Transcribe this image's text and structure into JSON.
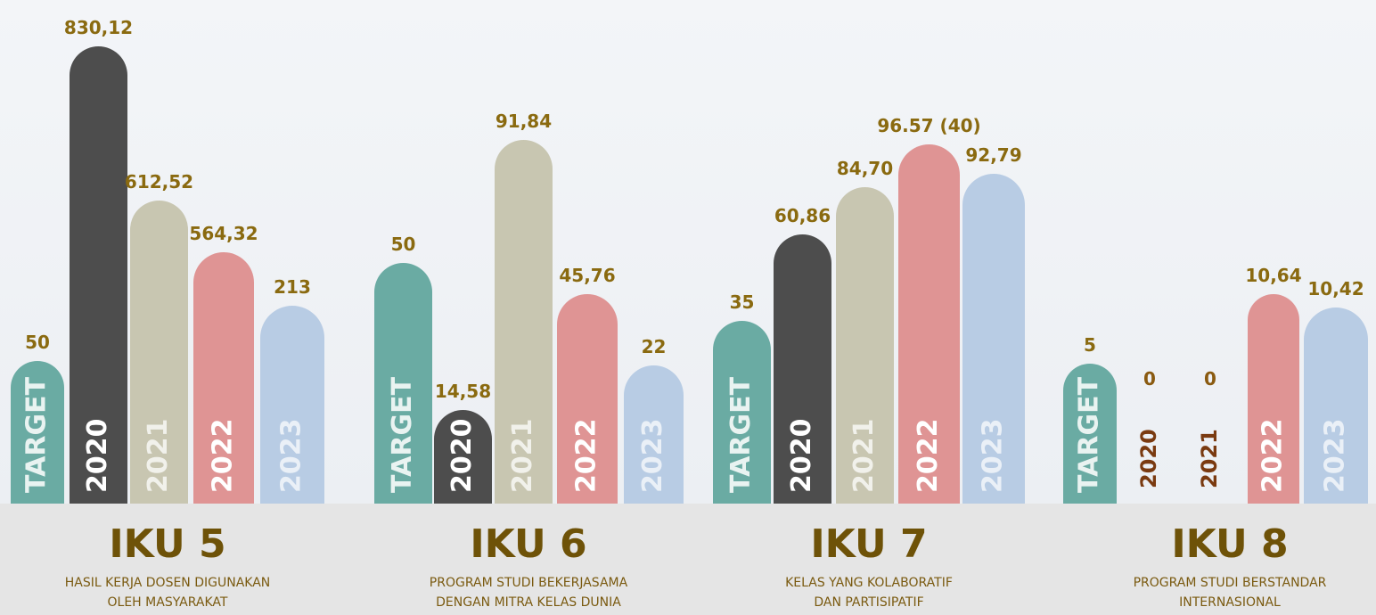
{
  "groups": [
    {
      "title": "IKU 5",
      "subtitle": [
        "HASIL KERJA DOSEN DIGUNAKAN",
        "OLEH MASYARAKAT"
      ],
      "bars": [
        {
          "label": "TARGET",
          "value": "50"
        },
        {
          "label": "2020",
          "value": "830,12"
        },
        {
          "label": "2021",
          "value": "612,52"
        },
        {
          "label": "2022",
          "value": "564,32"
        },
        {
          "label": "2023",
          "value": "213"
        }
      ]
    },
    {
      "title": "IKU 6",
      "subtitle": [
        "PROGRAM STUDI BEKERJASAMA",
        "DENGAN MITRA KELAS DUNIA"
      ],
      "bars": [
        {
          "label": "TARGET",
          "value": "50"
        },
        {
          "label": "2020",
          "value": "14,58"
        },
        {
          "label": "2021",
          "value": "91,84"
        },
        {
          "label": "2022",
          "value": "45,76"
        },
        {
          "label": "2023",
          "value": "22"
        }
      ]
    },
    {
      "title": "IKU 7",
      "subtitle": [
        "KELAS YANG KOLABORATIF",
        "DAN PARTISIPATIF"
      ],
      "bars": [
        {
          "label": "TARGET",
          "value": "35"
        },
        {
          "label": "2020",
          "value": "60,86"
        },
        {
          "label": "2021",
          "value": "84,70"
        },
        {
          "label": "2022",
          "value": "96.57 (40)"
        },
        {
          "label": "2023",
          "value": "92,79"
        }
      ]
    },
    {
      "title": "IKU 8",
      "subtitle": [
        "PROGRAM STUDI BERSTANDAR",
        "INTERNASIONAL"
      ],
      "bars": [
        {
          "label": "TARGET",
          "value": "5"
        },
        {
          "label": "2020",
          "value": "0"
        },
        {
          "label": "2021",
          "value": "0"
        },
        {
          "label": "2022",
          "value": "10,64"
        },
        {
          "label": "2023",
          "value": "10,42"
        }
      ]
    }
  ]
}
